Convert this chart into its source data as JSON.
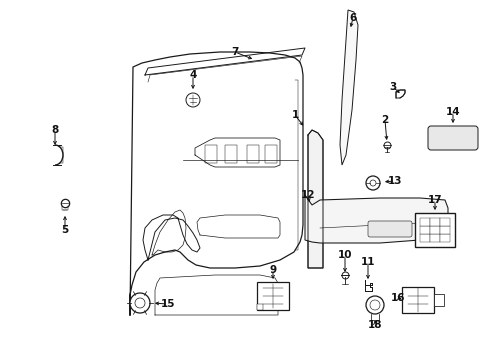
{
  "background_color": "#ffffff",
  "fig_width": 4.89,
  "fig_height": 3.6,
  "dpi": 100,
  "line_color": "#1a1a1a",
  "text_color": "#111111"
}
